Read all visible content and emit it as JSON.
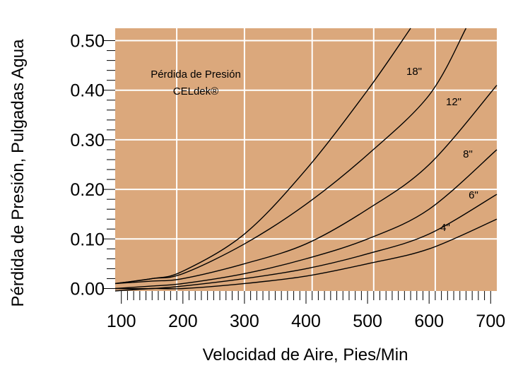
{
  "chart_data": {
    "type": "line",
    "title": "",
    "annotation": [
      "Pérdida de Presión",
      "CELdek®"
    ],
    "xlabel": "Velocidad de Aire, Pies/Min",
    "ylabel": "Pérdida de Presión, Pulgadas Agua",
    "xlim": [
      90,
      710
    ],
    "ylim": [
      -0.005,
      0.525
    ],
    "x_ticks": [
      100,
      200,
      300,
      400,
      500,
      600,
      700
    ],
    "x_tick_labels": [
      "100",
      "200",
      "300",
      "400",
      "500",
      "600",
      "700"
    ],
    "y_ticks": [
      0.0,
      0.1,
      0.2,
      0.3,
      0.4,
      0.5
    ],
    "y_tick_labels": [
      "0.00",
      "0.10",
      "0.20",
      "0.30",
      "0.40",
      "0.50"
    ],
    "grid_x": [
      190,
      300,
      410,
      510,
      610
    ],
    "grid_y": [
      0.1,
      0.2,
      0.3,
      0.4,
      0.5
    ],
    "background_color": "#dba87c",
    "grid_color": "#ffffff",
    "line_color": "#000000",
    "series": [
      {
        "name": "18\"",
        "x": [
          90,
          150,
          200,
          300,
          400,
          500,
          570
        ],
        "y": [
          0.01,
          0.02,
          0.035,
          0.11,
          0.24,
          0.4,
          0.525
        ]
      },
      {
        "name": "12\"",
        "x": [
          90,
          150,
          200,
          300,
          400,
          500,
          600,
          660
        ],
        "y": [
          0.01,
          0.02,
          0.03,
          0.09,
          0.17,
          0.27,
          0.39,
          0.525
        ]
      },
      {
        "name": "8\"",
        "x": [
          90,
          150,
          200,
          300,
          400,
          500,
          600,
          710
        ],
        "y": [
          0.01,
          0.015,
          0.02,
          0.05,
          0.09,
          0.16,
          0.25,
          0.41
        ]
      },
      {
        "name": "6\"",
        "x": [
          90,
          150,
          200,
          300,
          400,
          500,
          600,
          710
        ],
        "y": [
          0.0,
          0.005,
          0.01,
          0.03,
          0.06,
          0.1,
          0.16,
          0.28
        ]
      },
      {
        "name": "4\"",
        "x": [
          90,
          150,
          200,
          300,
          400,
          500,
          600,
          710
        ],
        "y": [
          0.0,
          0.0,
          0.005,
          0.02,
          0.04,
          0.07,
          0.11,
          0.19
        ]
      },
      {
        "name": "",
        "x": [
          90,
          150,
          200,
          300,
          400,
          500,
          600,
          710
        ],
        "y": [
          -0.005,
          0.0,
          0.0,
          0.01,
          0.025,
          0.05,
          0.08,
          0.14
        ]
      }
    ]
  }
}
